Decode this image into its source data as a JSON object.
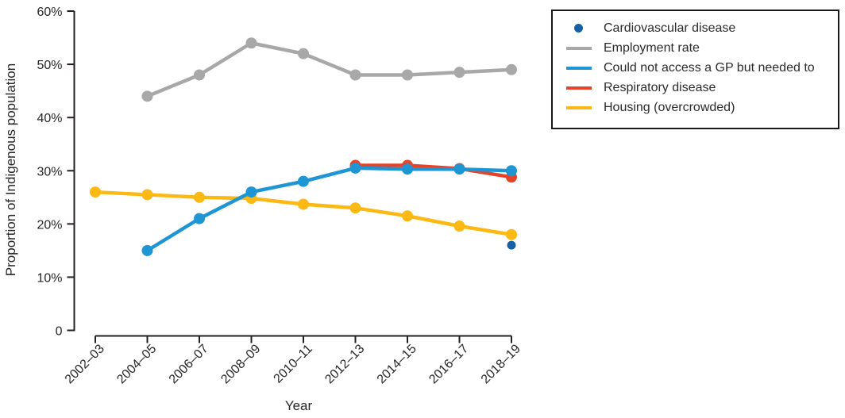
{
  "chart_data": {
    "type": "line",
    "title": "",
    "xlabel": "Year",
    "ylabel": "Proportion of Indigenous population",
    "ylim": [
      0,
      60
    ],
    "grid": false,
    "legend_position": "top-right",
    "ytick_values": [
      0,
      10,
      20,
      30,
      40,
      50,
      60
    ],
    "ytick_labels": [
      "0",
      "10%",
      "20%",
      "30%",
      "40%",
      "50%",
      "60%"
    ],
    "categories": [
      "2002–03",
      "2004–05",
      "2006–07",
      "2008–09",
      "2010–11",
      "2012–13",
      "2014–15",
      "2016–17",
      "2018–19"
    ],
    "series": [
      {
        "name": "Cardiovascular disease",
        "color": "#1660a8",
        "style": "marker-only",
        "values": [
          null,
          null,
          null,
          null,
          null,
          null,
          null,
          null,
          16
        ]
      },
      {
        "name": "Employment rate",
        "color": "#a8a8a8",
        "style": "line-marker",
        "values": [
          null,
          44,
          48,
          54,
          52,
          48,
          48,
          48.5,
          49
        ]
      },
      {
        "name": "Could not access a GP but needed to",
        "color": "#1f96d4",
        "style": "line-marker",
        "values": [
          null,
          15,
          21,
          26,
          28,
          30.5,
          30.3,
          30.3,
          30
        ]
      },
      {
        "name": "Respiratory disease",
        "color": "#e7432b",
        "style": "line-marker",
        "values": [
          null,
          null,
          null,
          null,
          null,
          31,
          31,
          30.4,
          28.8
        ]
      },
      {
        "name": "Housing (overcrowded)",
        "color": "#fcb813",
        "style": "line-marker",
        "values": [
          26,
          25.5,
          25,
          24.8,
          23.7,
          23,
          21.5,
          19.6,
          18
        ]
      }
    ]
  }
}
